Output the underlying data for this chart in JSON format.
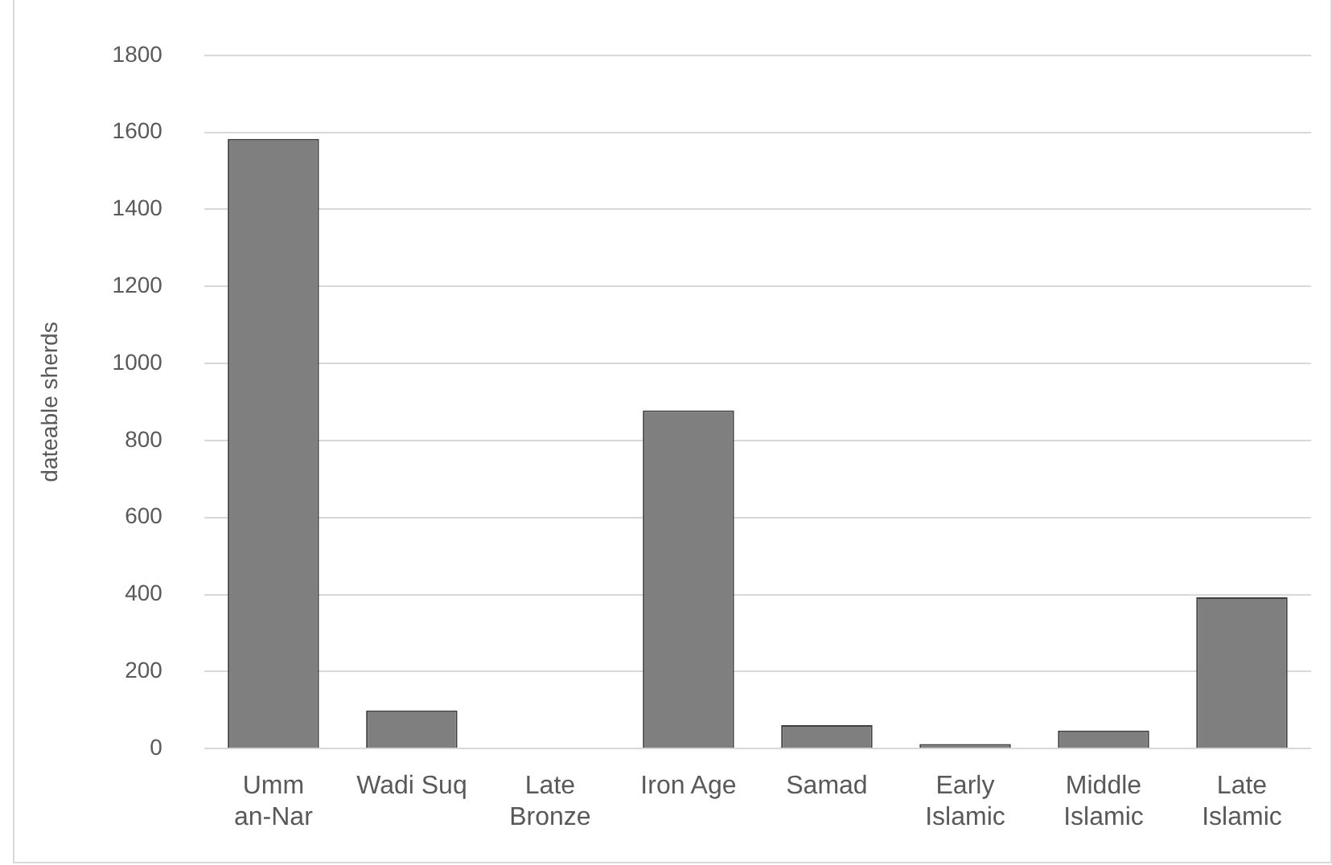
{
  "chart_data": {
    "type": "bar",
    "ylabel": "dateable sherds",
    "categories": [
      "Umm an-Nar",
      "Wadi Suq",
      "Late Bronze",
      "Iron Age",
      "Samad",
      "Early Islamic",
      "Middle Islamic",
      "Late Islamic"
    ],
    "values": [
      1583,
      99,
      0,
      878,
      61,
      12,
      47,
      393
    ],
    "color": "#7f7f7f",
    "ylim": [
      0,
      1800
    ],
    "yticks": [
      0,
      200,
      400,
      600,
      800,
      1000,
      1200,
      1400,
      1600,
      1800
    ],
    "grid": "y",
    "legend": false
  }
}
